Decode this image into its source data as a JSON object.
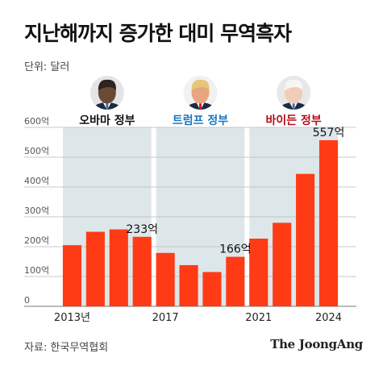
{
  "title": "지난해까지 증가한 대미 무역흑자",
  "unit_label": "단위: 달러",
  "source": "자료: 한국무역협회",
  "brand": "The JoongAng",
  "colors": {
    "bar": "#ff3b16",
    "period_bg": "#dde7ea",
    "obama": "#111111",
    "trump": "#1a78c2",
    "biden": "#b30e17"
  },
  "periods": [
    {
      "label": "오바마 정부",
      "portrait": "portrait-obama",
      "from": 2013,
      "to": 2016,
      "color_key": "obama"
    },
    {
      "label": "트럼프 정부",
      "portrait": "portrait-trump",
      "from": 2017,
      "to": 2020,
      "color_key": "trump"
    },
    {
      "label": "바이든 정부",
      "portrait": "portrait-biden",
      "from": 2021,
      "to": 2024,
      "color_key": "biden"
    }
  ],
  "chart_data": {
    "type": "bar",
    "x": [
      2013,
      2014,
      2015,
      2016,
      2017,
      2018,
      2019,
      2020,
      2021,
      2022,
      2023,
      2024
    ],
    "values": [
      205,
      250,
      258,
      233,
      179,
      138,
      115,
      166,
      227,
      280,
      444,
      557
    ],
    "ylim": [
      0,
      600
    ],
    "yticks": [
      0,
      100,
      200,
      300,
      400,
      500,
      600
    ],
    "ytick_labels": [
      "0",
      "100억",
      "200억",
      "300억",
      "400억",
      "500억",
      "600억"
    ],
    "xtick_labels": [
      {
        "x": 2013,
        "label": "2013년"
      },
      {
        "x": 2017,
        "label": "2017"
      },
      {
        "x": 2021,
        "label": "2021"
      },
      {
        "x": 2024,
        "label": "2024"
      }
    ],
    "data_labels": [
      {
        "x": 2016,
        "label": "233억"
      },
      {
        "x": 2020,
        "label": "166억"
      },
      {
        "x": 2024,
        "label": "557억"
      }
    ],
    "grid": true
  }
}
